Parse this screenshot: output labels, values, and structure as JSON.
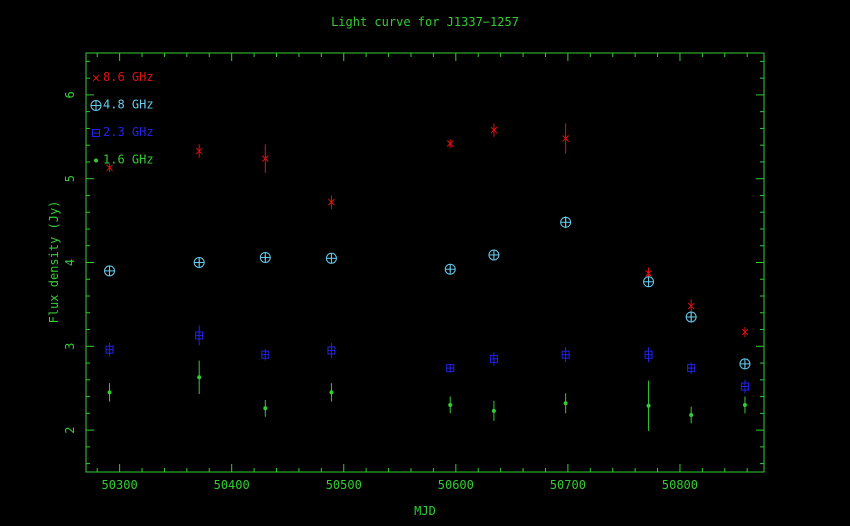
{
  "chart_data": {
    "type": "scatter",
    "title": "Light curve for J1337−1257",
    "xlabel": "MJD",
    "ylabel": "Flux density (Jy)",
    "xlim": [
      50270,
      50875
    ],
    "ylim": [
      1.5,
      6.5
    ],
    "xticks": [
      50300,
      50400,
      50500,
      50600,
      50700,
      50800
    ],
    "xtick_labels": [
      "50300",
      "50400",
      "50500",
      "50600",
      "50700",
      "50800"
    ],
    "yticks": [
      2,
      3,
      4,
      5,
      6
    ],
    "ytick_labels": [
      "2",
      "3",
      "4",
      "5",
      "6"
    ],
    "grid": false,
    "legend_position": "top-left",
    "axis_color": "#33cc33",
    "series": [
      {
        "name": "8.6 GHz",
        "color": "#dd1111",
        "marker": "x",
        "points": [
          {
            "x": 50291,
            "y": 5.13,
            "err": 0.05
          },
          {
            "x": 50371,
            "y": 5.33,
            "err": 0.08
          },
          {
            "x": 50430,
            "y": 5.24,
            "err": 0.17
          },
          {
            "x": 50489,
            "y": 4.72,
            "err": 0.08
          },
          {
            "x": 50595,
            "y": 5.42,
            "err": 0.05
          },
          {
            "x": 50634,
            "y": 5.58,
            "err": 0.08
          },
          {
            "x": 50698,
            "y": 5.48,
            "err": 0.18
          },
          {
            "x": 50772,
            "y": 3.87,
            "err": 0.07
          },
          {
            "x": 50810,
            "y": 3.48,
            "err": 0.08
          },
          {
            "x": 50858,
            "y": 3.17,
            "err": 0.06
          }
        ]
      },
      {
        "name": "4.8 GHz",
        "color": "#66ccee",
        "marker": "circle-plus",
        "points": [
          {
            "x": 50291,
            "y": 3.9,
            "err": 0.03
          },
          {
            "x": 50371,
            "y": 4.0,
            "err": 0.04
          },
          {
            "x": 50430,
            "y": 4.06,
            "err": 0.03
          },
          {
            "x": 50489,
            "y": 4.05,
            "err": 0.03
          },
          {
            "x": 50595,
            "y": 3.92,
            "err": 0.03
          },
          {
            "x": 50634,
            "y": 4.09,
            "err": 0.03
          },
          {
            "x": 50698,
            "y": 4.48,
            "err": 0.07
          },
          {
            "x": 50772,
            "y": 3.77,
            "err": 0.03
          },
          {
            "x": 50810,
            "y": 3.35,
            "err": 0.05
          },
          {
            "x": 50858,
            "y": 2.79,
            "err": 0.04
          }
        ]
      },
      {
        "name": "2.3 GHz",
        "color": "#2222ee",
        "marker": "square-plus",
        "points": [
          {
            "x": 50291,
            "y": 2.96,
            "err": 0.08
          },
          {
            "x": 50371,
            "y": 3.13,
            "err": 0.12
          },
          {
            "x": 50430,
            "y": 2.9,
            "err": 0.07
          },
          {
            "x": 50489,
            "y": 2.95,
            "err": 0.09
          },
          {
            "x": 50595,
            "y": 2.74,
            "err": 0.05
          },
          {
            "x": 50634,
            "y": 2.85,
            "err": 0.08
          },
          {
            "x": 50698,
            "y": 2.9,
            "err": 0.09
          },
          {
            "x": 50772,
            "y": 2.9,
            "err": 0.09
          },
          {
            "x": 50810,
            "y": 2.74,
            "err": 0.07
          },
          {
            "x": 50858,
            "y": 2.52,
            "err": 0.08
          }
        ]
      },
      {
        "name": "1.6 GHz",
        "color": "#33cc33",
        "marker": "dot",
        "points": [
          {
            "x": 50291,
            "y": 2.45,
            "err": 0.11
          },
          {
            "x": 50371,
            "y": 2.63,
            "err": 0.2
          },
          {
            "x": 50430,
            "y": 2.26,
            "err": 0.1
          },
          {
            "x": 50489,
            "y": 2.45,
            "err": 0.11
          },
          {
            "x": 50595,
            "y": 2.3,
            "err": 0.1
          },
          {
            "x": 50634,
            "y": 2.23,
            "err": 0.12
          },
          {
            "x": 50698,
            "y": 2.32,
            "err": 0.12
          },
          {
            "x": 50772,
            "y": 2.29,
            "err": 0.3
          },
          {
            "x": 50810,
            "y": 2.18,
            "err": 0.1
          },
          {
            "x": 50858,
            "y": 2.3,
            "err": 0.1
          }
        ]
      }
    ]
  }
}
